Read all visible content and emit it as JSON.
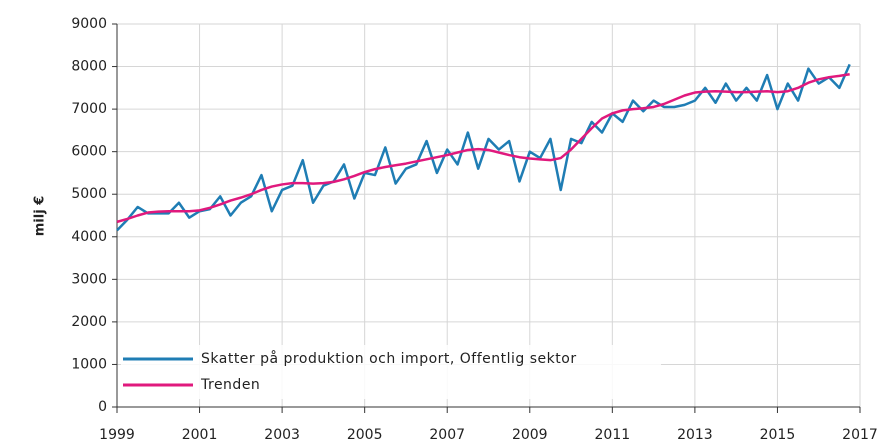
{
  "chart_data": {
    "type": "line",
    "y_label": "milj €",
    "x": [
      1999,
      1999.25,
      1999.5,
      1999.75,
      2000,
      2000.25,
      2000.5,
      2000.75,
      2001,
      2001.25,
      2001.5,
      2001.75,
      2002,
      2002.25,
      2002.5,
      2002.75,
      2003,
      2003.25,
      2003.5,
      2003.75,
      2004,
      2004.25,
      2004.5,
      2004.75,
      2005,
      2005.25,
      2005.5,
      2005.75,
      2006,
      2006.25,
      2006.5,
      2006.75,
      2007,
      2007.25,
      2007.5,
      2007.75,
      2008,
      2008.25,
      2008.5,
      2008.75,
      2009,
      2009.25,
      2009.5,
      2009.75,
      2010,
      2010.25,
      2010.5,
      2010.75,
      2011,
      2011.25,
      2011.5,
      2011.75,
      2012,
      2012.25,
      2012.5,
      2012.75,
      2013,
      2013.25,
      2013.5,
      2013.75,
      2014,
      2014.25,
      2014.5,
      2014.75,
      2015,
      2015.25,
      2015.5,
      2015.75,
      2016,
      2016.25,
      2016.5,
      2016.75
    ],
    "series": [
      {
        "name": "Skatter på produktion och import, Offentlig sektor",
        "color": "#1f7db4",
        "values": [
          4150,
          4400,
          4700,
          4550,
          4550,
          4550,
          4800,
          4450,
          4600,
          4650,
          4950,
          4500,
          4800,
          4950,
          5450,
          4600,
          5100,
          5200,
          5800,
          4800,
          5200,
          5300,
          5700,
          4900,
          5500,
          5450,
          6100,
          5250,
          5600,
          5700,
          6250,
          5500,
          6050,
          5700,
          6450,
          5600,
          6300,
          6050,
          6250,
          5300,
          6000,
          5850,
          6300,
          5100,
          6300,
          6200,
          6700,
          6450,
          6900,
          6700,
          7200,
          6950,
          7200,
          7050,
          7050,
          7100,
          7200,
          7500,
          7150,
          7600,
          7200,
          7500,
          7200,
          7800,
          7000,
          7600,
          7200,
          7950,
          7600,
          7750,
          7500,
          8050
        ]
      },
      {
        "name": "Trenden",
        "color": "#e0197d",
        "values": [
          4350,
          4420,
          4500,
          4570,
          4590,
          4600,
          4600,
          4600,
          4620,
          4680,
          4760,
          4850,
          4920,
          5000,
          5100,
          5180,
          5230,
          5260,
          5260,
          5250,
          5260,
          5290,
          5350,
          5430,
          5520,
          5590,
          5640,
          5680,
          5720,
          5770,
          5820,
          5870,
          5920,
          5980,
          6040,
          6060,
          6040,
          5980,
          5920,
          5870,
          5840,
          5820,
          5800,
          5850,
          6050,
          6300,
          6550,
          6780,
          6900,
          6970,
          7000,
          7020,
          7050,
          7120,
          7220,
          7320,
          7390,
          7410,
          7420,
          7410,
          7400,
          7400,
          7410,
          7420,
          7400,
          7420,
          7500,
          7620,
          7700,
          7750,
          7780,
          7820
        ]
      }
    ],
    "xlim": [
      1999,
      2017
    ],
    "xticks": [
      1999,
      2001,
      2003,
      2005,
      2007,
      2009,
      2011,
      2013,
      2015,
      2017
    ],
    "ylim": [
      0,
      9000
    ],
    "yticks": [
      0,
      1000,
      2000,
      3000,
      4000,
      5000,
      6000,
      7000,
      8000,
      9000
    ],
    "grid": true,
    "legend": "lower left"
  }
}
